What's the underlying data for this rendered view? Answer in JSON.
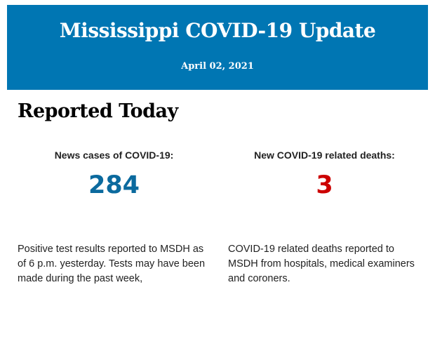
{
  "header": {
    "title": "Mississippi COVID-19 Update",
    "date": "April 02, 2021"
  },
  "section_title": "Reported Today",
  "stats": [
    {
      "label": "News cases of COVID-19:",
      "value": "284",
      "color": "#0b6a9e",
      "description": "Positive test results reported to MSDH as of 6 p.m. yesterday. Tests may have been made during the past week,"
    },
    {
      "label": "New COVID-19 related deaths:",
      "value": "3",
      "color": "#cc0000",
      "description": "COVID-19 related deaths reported to MSDH from hospitals, medical examiners and coroners."
    }
  ]
}
